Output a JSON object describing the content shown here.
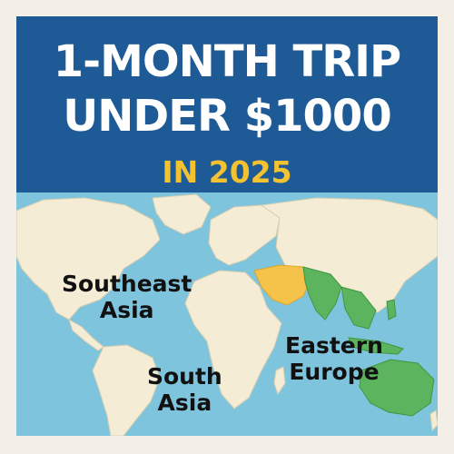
{
  "header": {
    "title_line1": "1-MONTH TRIP",
    "title_line2": "UNDER $1000",
    "subtitle": "IN 2025"
  },
  "map": {
    "labels": {
      "southeast_asia": [
        "Southeast",
        "Asia"
      ],
      "south_asia": [
        "South",
        "Asia"
      ],
      "eastern_europe": [
        "Eastern",
        "Europe"
      ]
    }
  },
  "colors": {
    "header_bg": "#1d5a96",
    "title": "#ffffff",
    "subtitle": "#f2c230",
    "ocean": "#7fc4dd",
    "land": "#f4ecd4",
    "highlight_yellow": "#f5c24a",
    "highlight_green": "#5cb55e",
    "page_bg": "#f4efe6"
  }
}
